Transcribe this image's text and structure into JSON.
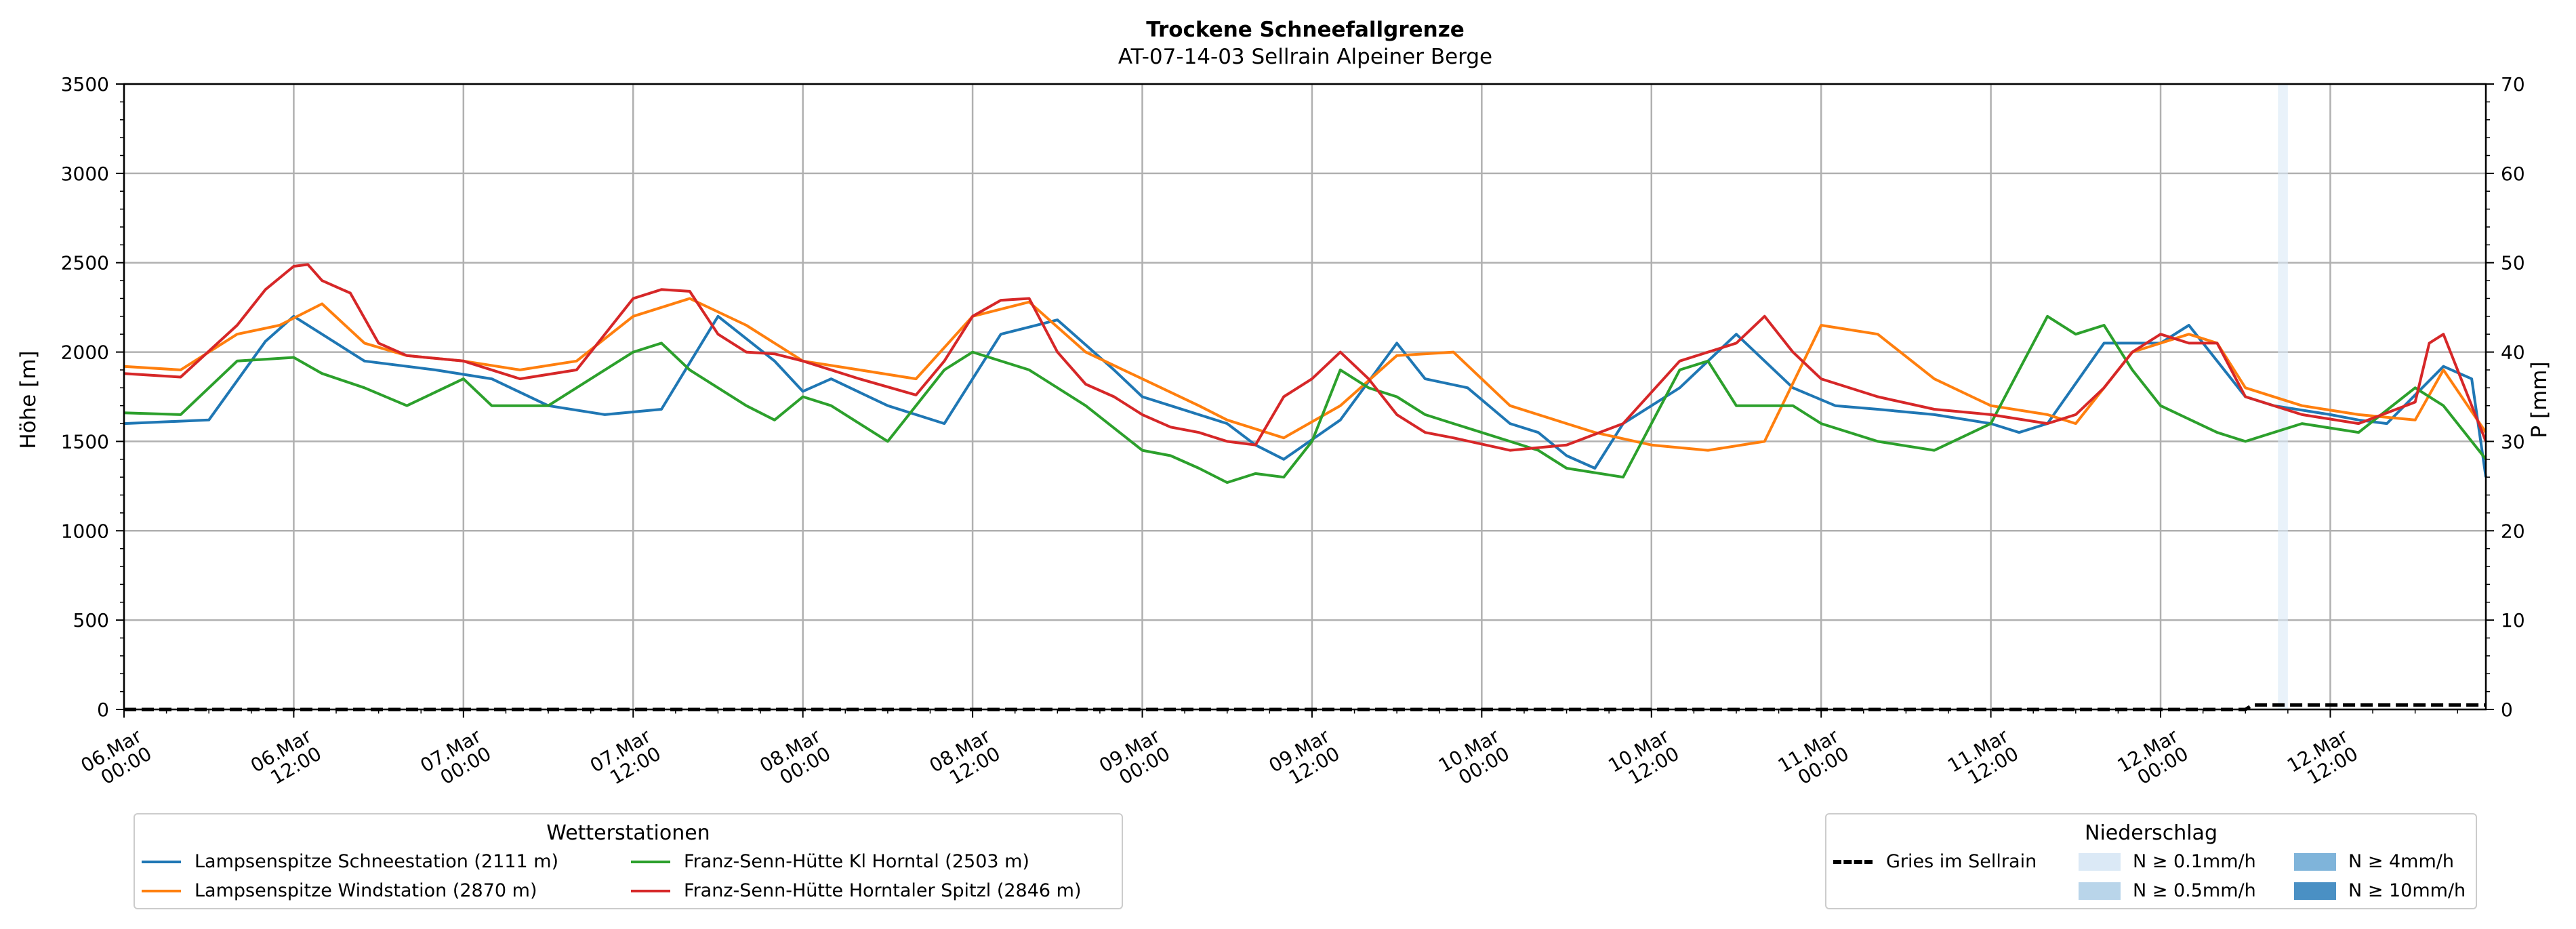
{
  "chart_data": {
    "type": "line",
    "title": "Trockene Schneefallgrenze",
    "subtitle": "AT-07-14-03 Sellrain Alpeiner Berge",
    "ylabel": "Höhe [m]",
    "y2label": "P [mm]",
    "ylim": [
      0,
      3500
    ],
    "y2lim": [
      0,
      70
    ],
    "yticks": [
      "0",
      "500",
      "1000",
      "1500",
      "2000",
      "2500",
      "3000",
      "3500"
    ],
    "y2ticks": [
      "0",
      "10",
      "20",
      "30",
      "40",
      "50",
      "60",
      "70"
    ],
    "xlim_hours": [
      0,
      167
    ],
    "xtick_labels": [
      [
        "06.Mar",
        "00:00"
      ],
      [
        "06.Mar",
        "12:00"
      ],
      [
        "07.Mar",
        "00:00"
      ],
      [
        "07.Mar",
        "12:00"
      ],
      [
        "08.Mar",
        "00:00"
      ],
      [
        "08.Mar",
        "12:00"
      ],
      [
        "09.Mar",
        "00:00"
      ],
      [
        "09.Mar",
        "12:00"
      ],
      [
        "10.Mar",
        "00:00"
      ],
      [
        "10.Mar",
        "12:00"
      ],
      [
        "11.Mar",
        "00:00"
      ],
      [
        "11.Mar",
        "12:00"
      ],
      [
        "12.Mar",
        "00:00"
      ],
      [
        "12.Mar",
        "12:00"
      ]
    ],
    "grid": true,
    "series": [
      {
        "name": "Lampsenspitze Schneestation (2111 m)",
        "color": "#1f77b4",
        "x": [
          0,
          6,
          10,
          12,
          14,
          17,
          22,
          26,
          30,
          34,
          38,
          42,
          46,
          48,
          50,
          54,
          58,
          62,
          66,
          70,
          72,
          74,
          78,
          80,
          82,
          86,
          90,
          92,
          95,
          98,
          100,
          102,
          104,
          106,
          110,
          114,
          118,
          121,
          124,
          128,
          132,
          134,
          136,
          140,
          144,
          146,
          148,
          150,
          152,
          156,
          158,
          160,
          164,
          166,
          167
        ],
        "y": [
          1600,
          1620,
          2060,
          2200,
          2100,
          1950,
          1900,
          1850,
          1700,
          1650,
          1680,
          2200,
          1950,
          1780,
          1850,
          1700,
          1600,
          2100,
          2180,
          1900,
          1750,
          1700,
          1600,
          1480,
          1400,
          1620,
          2050,
          1850,
          1800,
          1600,
          1550,
          1420,
          1350,
          1600,
          1800,
          2100,
          1800,
          1700,
          1680,
          1650,
          1600,
          1550,
          1600,
          2050,
          2050,
          2150,
          1950,
          1750,
          1700,
          1650,
          1620,
          1600,
          1920,
          1850,
          1300
        ]
      },
      {
        "name": "Lampsenspitze Windstation (2870 m)",
        "color": "#ff7f0e",
        "x": [
          0,
          4,
          8,
          11,
          14,
          17,
          20,
          24,
          28,
          32,
          36,
          40,
          44,
          48,
          52,
          56,
          60,
          64,
          68,
          72,
          76,
          78,
          82,
          86,
          90,
          94,
          98,
          102,
          104,
          108,
          112,
          116,
          120,
          124,
          128,
          132,
          136,
          138,
          142,
          146,
          148,
          150,
          154,
          158,
          162,
          164,
          167
        ],
        "y": [
          1920,
          1900,
          2100,
          2150,
          2270,
          2050,
          1980,
          1950,
          1900,
          1950,
          2200,
          2300,
          2150,
          1950,
          1900,
          1850,
          2200,
          2280,
          2000,
          1850,
          1700,
          1620,
          1520,
          1700,
          1980,
          2000,
          1700,
          1600,
          1550,
          1480,
          1450,
          1500,
          2150,
          2100,
          1850,
          1700,
          1650,
          1600,
          2000,
          2100,
          2050,
          1800,
          1700,
          1650,
          1620,
          1900,
          1550
        ]
      },
      {
        "name": "Franz-Senn-Hütte Kl Horntal (2503 m)",
        "color": "#2ca02c",
        "x": [
          0,
          4,
          8,
          12,
          14,
          17,
          20,
          24,
          26,
          30,
          34,
          36,
          38,
          40,
          44,
          46,
          48,
          50,
          54,
          56,
          58,
          60,
          64,
          68,
          72,
          74,
          76,
          78,
          80,
          82,
          84,
          86,
          88,
          90,
          92,
          94,
          98,
          100,
          102,
          106,
          108,
          110,
          112,
          114,
          118,
          120,
          124,
          128,
          132,
          134,
          136,
          138,
          140,
          142,
          144,
          148,
          150,
          154,
          158,
          162,
          164,
          167
        ],
        "y": [
          1660,
          1650,
          1950,
          1970,
          1880,
          1800,
          1700,
          1850,
          1700,
          1700,
          1900,
          2000,
          2050,
          1900,
          1700,
          1620,
          1750,
          1700,
          1500,
          1700,
          1900,
          2000,
          1900,
          1700,
          1450,
          1420,
          1350,
          1270,
          1320,
          1300,
          1500,
          1900,
          1800,
          1750,
          1650,
          1600,
          1500,
          1450,
          1350,
          1300,
          1600,
          1900,
          1950,
          1700,
          1700,
          1600,
          1500,
          1450,
          1600,
          1900,
          2200,
          2100,
          2150,
          1900,
          1700,
          1550,
          1500,
          1600,
          1550,
          1800,
          1700,
          1400
        ]
      },
      {
        "name": "Franz-Senn-Hütte Horntaler Spitzl (2846 m)",
        "color": "#d62728",
        "x": [
          0,
          4,
          8,
          10,
          12,
          13,
          14,
          16,
          18,
          20,
          24,
          28,
          32,
          36,
          38,
          40,
          42,
          44,
          46,
          48,
          52,
          56,
          58,
          60,
          62,
          64,
          66,
          68,
          70,
          72,
          74,
          76,
          78,
          80,
          82,
          84,
          86,
          88,
          90,
          92,
          94,
          98,
          102,
          106,
          110,
          114,
          116,
          118,
          120,
          124,
          128,
          132,
          136,
          138,
          140,
          142,
          144,
          146,
          148,
          150,
          154,
          158,
          162,
          163,
          164,
          167
        ],
        "y": [
          1880,
          1860,
          2150,
          2350,
          2480,
          2490,
          2400,
          2330,
          2050,
          1980,
          1950,
          1850,
          1900,
          2300,
          2350,
          2340,
          2100,
          2000,
          1990,
          1950,
          1850,
          1760,
          1950,
          2200,
          2290,
          2300,
          2000,
          1820,
          1750,
          1650,
          1580,
          1550,
          1500,
          1480,
          1750,
          1850,
          2000,
          1850,
          1650,
          1550,
          1520,
          1450,
          1480,
          1600,
          1950,
          2050,
          2200,
          2000,
          1850,
          1750,
          1680,
          1650,
          1600,
          1650,
          1800,
          2000,
          2100,
          2050,
          2050,
          1750,
          1650,
          1600,
          1720,
          2050,
          2100,
          1500
        ]
      }
    ],
    "precip_series": {
      "name": "Gries im Sellrain",
      "x": [
        0,
        150,
        150.5,
        167
      ],
      "y": [
        0,
        0,
        0.5,
        0.5
      ]
    },
    "precip_bands": [
      {
        "start_hour": 152.3,
        "end_hour": 153.0,
        "class": "N ≥ 0.1mm/h"
      }
    ],
    "legend_stations": {
      "title": "Wetterstationen",
      "placement": "bottom-left"
    },
    "legend_precip": {
      "title": "Niederschlag",
      "placement": "bottom-right",
      "line_label": "Gries im Sellrain",
      "classes": [
        {
          "label": "N ≥ 0.1mm/h",
          "color": "#dbe9f6"
        },
        {
          "label": "N ≥ 0.5mm/h",
          "color": "#b9d5ea"
        },
        {
          "label": "N ≥ 4mm/h",
          "color": "#7fb4da"
        },
        {
          "label": "N ≥ 10mm/h",
          "color": "#4a90c4"
        }
      ]
    }
  }
}
